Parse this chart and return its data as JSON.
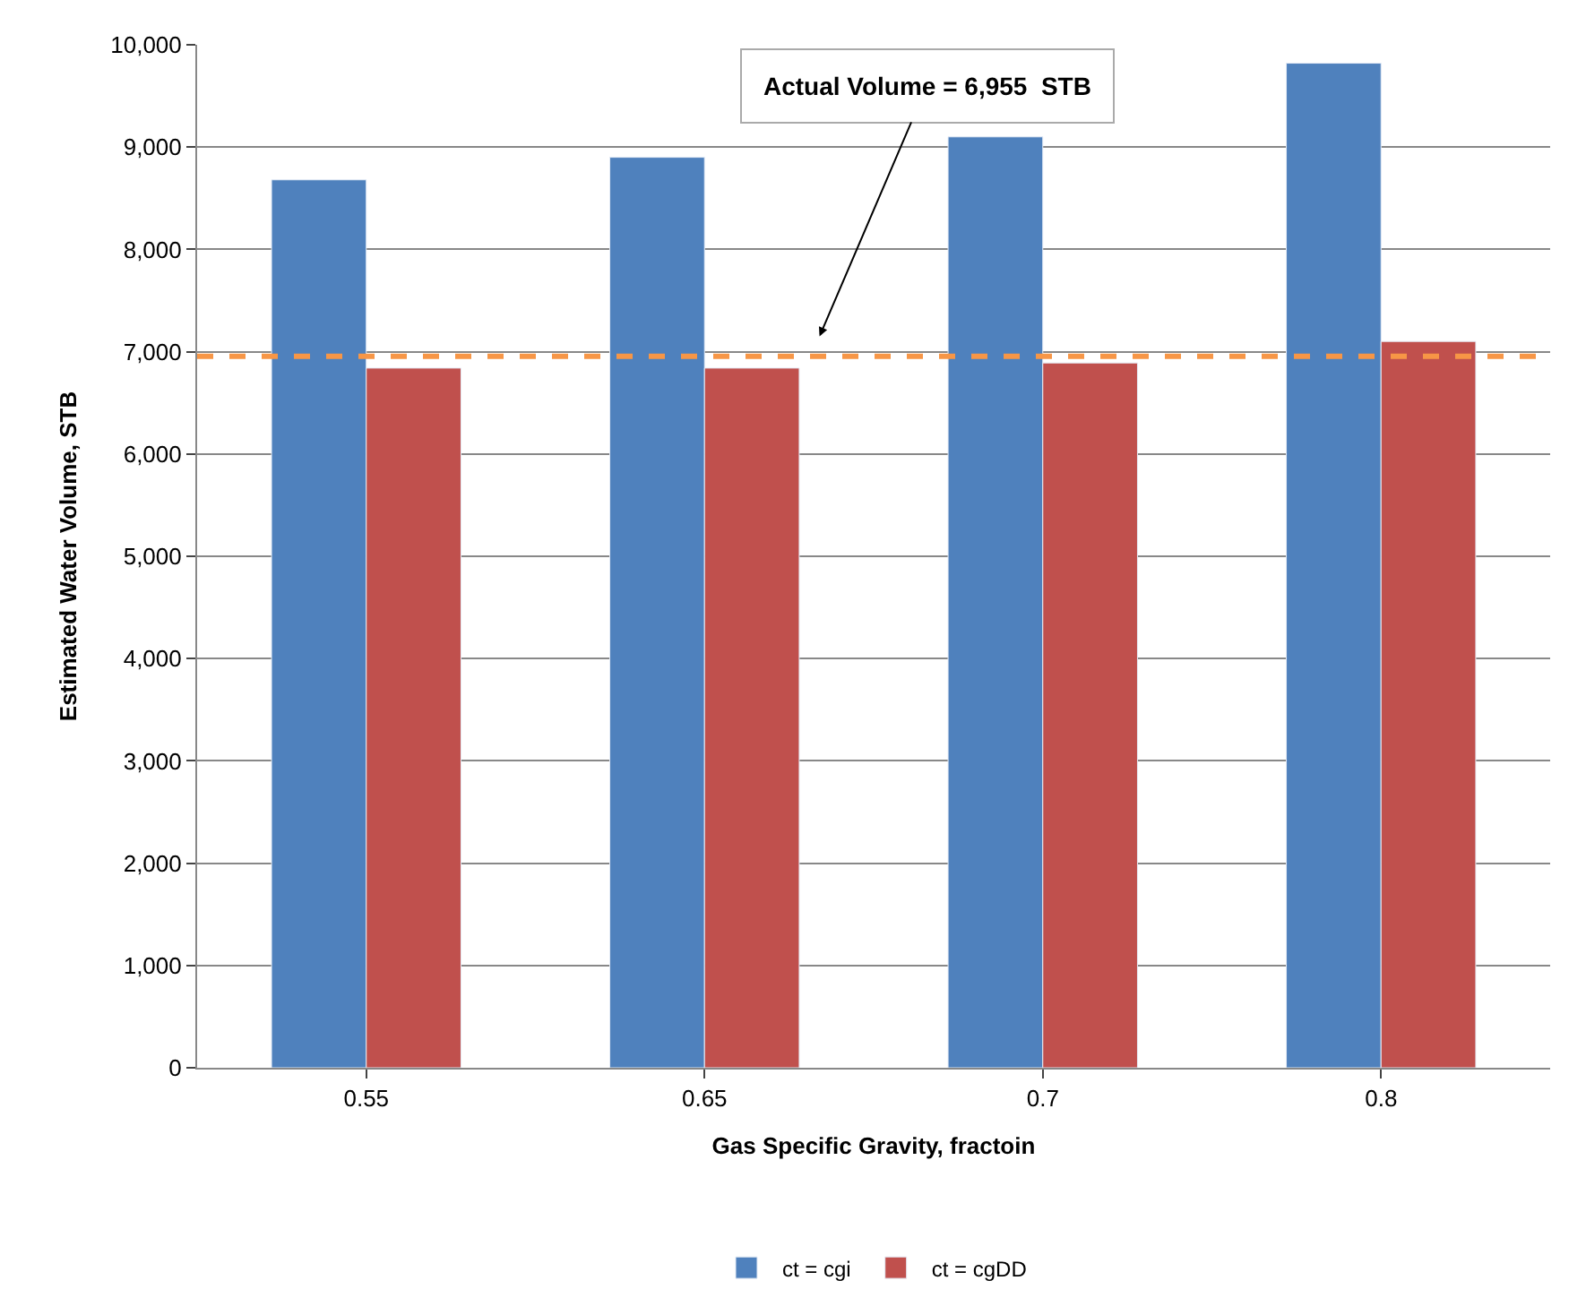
{
  "chart_data": {
    "type": "bar",
    "xlabel": "Gas Specific Gravity, fractoin",
    "ylabel": "Estimated Water Volume, STB",
    "categories": [
      "0.55",
      "0.65",
      "0.7",
      "0.8"
    ],
    "series": [
      {
        "name": "ct = cgi",
        "color": "#4f81bd",
        "values": [
          8680,
          8900,
          9100,
          9820
        ]
      },
      {
        "name": "ct = cgDD",
        "color": "#c0504d",
        "values": [
          6840,
          6840,
          6890,
          7100
        ]
      }
    ],
    "ylim": [
      0,
      10000
    ],
    "yticks": [
      {
        "value": 0,
        "label": "0"
      },
      {
        "value": 1000,
        "label": "1,000"
      },
      {
        "value": 2000,
        "label": "2,000"
      },
      {
        "value": 3000,
        "label": "3,000"
      },
      {
        "value": 4000,
        "label": "4,000"
      },
      {
        "value": 5000,
        "label": "5,000"
      },
      {
        "value": 6000,
        "label": "6,000"
      },
      {
        "value": 7000,
        "label": "7,000"
      },
      {
        "value": 8000,
        "label": "8,000"
      },
      {
        "value": 9000,
        "label": "9,000"
      },
      {
        "value": 10000,
        "label": "10,000"
      }
    ],
    "ref_lines": [
      {
        "axis": "y",
        "value": 6955,
        "color": "#f79646",
        "line_style": "dashed"
      }
    ],
    "annotations": [
      "Actual Volume = 6,955  STB"
    ],
    "grid": "y",
    "legend": "bottom"
  }
}
